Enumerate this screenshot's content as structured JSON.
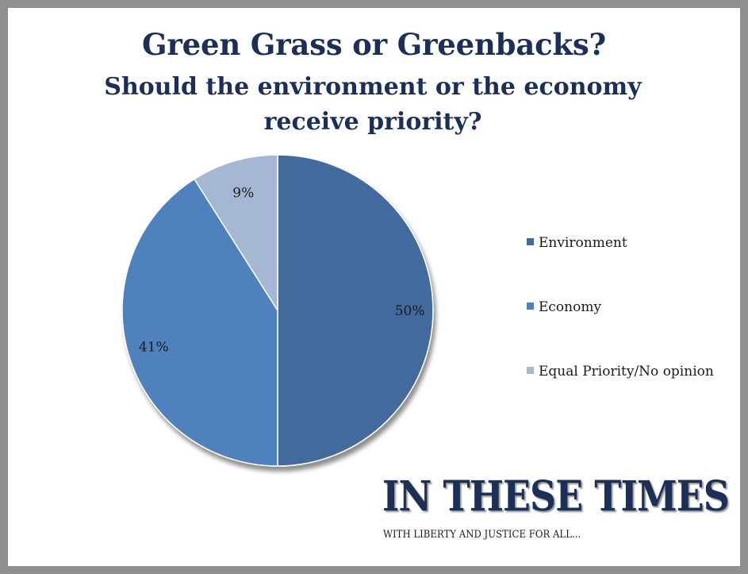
{
  "chart_data": {
    "type": "pie",
    "title": "Green Grass or Greenbacks?",
    "subtitle": "Should the environment or the economy receive priority?",
    "slices": [
      {
        "label": "Environment",
        "value": 50,
        "display": "50%",
        "color": "#426a9c"
      },
      {
        "label": "Economy",
        "value": 41,
        "display": "41%",
        "color": "#4f81bd"
      },
      {
        "label": "Equal Priority/No opinion",
        "value": 9,
        "display": "9%",
        "color": "#a6b7d4"
      }
    ],
    "legend_position": "right"
  },
  "branding": {
    "name": "IN THESE TIMES",
    "tagline": "WITH LIBERTY AND JUSTICE FOR ALL..."
  }
}
